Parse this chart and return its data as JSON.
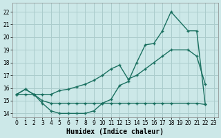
{
  "xlabel": "Humidex (Indice chaleur)",
  "bg_color": "#cce8e8",
  "grid_color": "#aacccc",
  "line_color": "#1a7060",
  "xlim": [
    -0.5,
    23.5
  ],
  "ylim": [
    13.7,
    22.7
  ],
  "xticks": [
    0,
    1,
    2,
    3,
    4,
    5,
    6,
    7,
    8,
    9,
    10,
    11,
    12,
    13,
    14,
    15,
    16,
    17,
    18,
    19,
    20,
    21,
    22,
    23
  ],
  "yticks": [
    14,
    15,
    16,
    17,
    18,
    19,
    20,
    21,
    22
  ],
  "line1_x": [
    0,
    1,
    2,
    3,
    4,
    5,
    6,
    7,
    8,
    9,
    10,
    11,
    12,
    13,
    14,
    15,
    16,
    17,
    18,
    20,
    21,
    22
  ],
  "line1_y": [
    15.5,
    15.9,
    15.5,
    15.5,
    15.5,
    15.8,
    15.9,
    16.1,
    16.3,
    16.6,
    17.0,
    17.5,
    17.8,
    16.7,
    17.0,
    17.5,
    18.0,
    18.5,
    19.0,
    19.0,
    18.5,
    16.3
  ],
  "line2_x": [
    0,
    1,
    2,
    3,
    4,
    5,
    6,
    7,
    8,
    9,
    10,
    11,
    12,
    13,
    14,
    15,
    16,
    17,
    18,
    20,
    21,
    22
  ],
  "line2_y": [
    15.5,
    15.9,
    15.5,
    14.8,
    14.2,
    14.0,
    14.0,
    14.0,
    14.0,
    14.2,
    14.8,
    15.1,
    16.2,
    16.5,
    18.0,
    19.4,
    19.5,
    20.5,
    22.0,
    20.5,
    20.5,
    14.7
  ],
  "line3_x": [
    0,
    1,
    2,
    3,
    4,
    5,
    6,
    7,
    8,
    9,
    10,
    11,
    12,
    13,
    14,
    15,
    16,
    17,
    18,
    20,
    21,
    22
  ],
  "line3_y": [
    15.5,
    15.5,
    15.5,
    15.0,
    14.8,
    14.8,
    14.8,
    14.8,
    14.8,
    14.8,
    14.8,
    14.8,
    14.8,
    14.8,
    14.8,
    14.8,
    14.8,
    14.8,
    14.8,
    14.8,
    14.8,
    14.7
  ]
}
